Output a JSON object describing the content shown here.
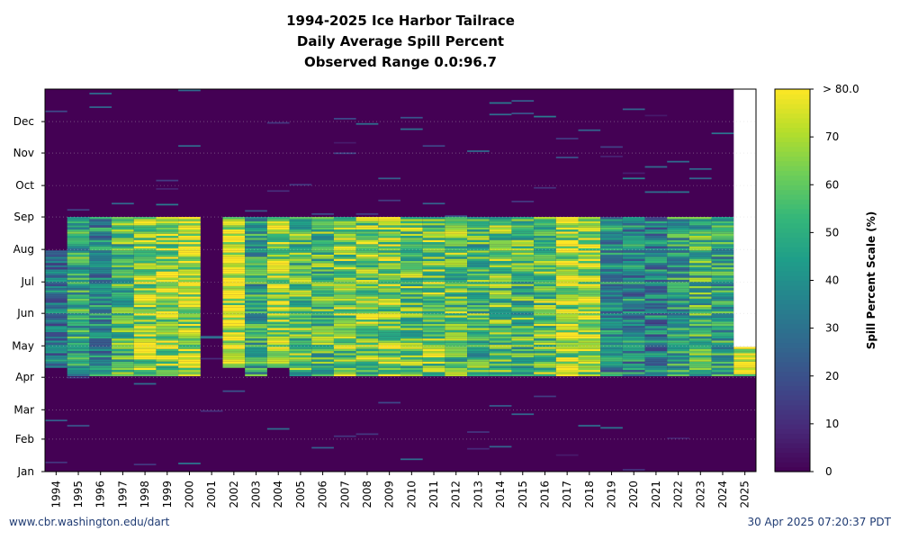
{
  "title_lines": [
    "1994-2025 Ice Harbor Tailrace",
    "Daily Average Spill Percent",
    "Observed Range 0.0:96.7"
  ],
  "footer": {
    "left": "www.cbr.washington.edu/dart",
    "right": "30 Apr 2025 07:20:37 PDT"
  },
  "chart_data": {
    "type": "heatmap",
    "title": "1994-2025 Ice Harbor Tailrace Daily Average Spill Percent Observed Range 0.0:96.7",
    "x_categories": [
      "1994",
      "1995",
      "1996",
      "1997",
      "1998",
      "1999",
      "2000",
      "2001",
      "2002",
      "2003",
      "2004",
      "2005",
      "2006",
      "2007",
      "2008",
      "2009",
      "2010",
      "2011",
      "2012",
      "2013",
      "2014",
      "2015",
      "2016",
      "2017",
      "2018",
      "2019",
      "2020",
      "2021",
      "2022",
      "2023",
      "2024",
      "2025"
    ],
    "y_ticks": [
      "Jan",
      "Feb",
      "Mar",
      "Apr",
      "May",
      "Jun",
      "Jul",
      "Aug",
      "Sep",
      "Oct",
      "Nov",
      "Dec"
    ],
    "y_tick_days": [
      1,
      32,
      60,
      91,
      121,
      152,
      182,
      213,
      244,
      274,
      305,
      335
    ],
    "y_range_days": [
      1,
      366
    ],
    "color_scale": {
      "label": "Spill Percent Scale (%)",
      "min": 0,
      "max": 80,
      "ticks": [
        0,
        10,
        20,
        30,
        40,
        50,
        60,
        70
      ],
      "top_label": "> 80.0",
      "colors": [
        "#440154",
        "#482878",
        "#3e4989",
        "#31688e",
        "#26828e",
        "#1f9e89",
        "#35b779",
        "#6ece58",
        "#b5de2b",
        "#fde725"
      ]
    },
    "observed_range": [
      0.0,
      96.7
    ],
    "grid": true,
    "last_observed_day_2025": 120,
    "spill_seasons": [
      {
        "year": "1994",
        "start": 100,
        "end": 211,
        "mean": 30
      },
      {
        "year": "1995",
        "start": 92,
        "end": 244,
        "mean": 48
      },
      {
        "year": "1996",
        "start": 92,
        "end": 244,
        "mean": 38
      },
      {
        "year": "1997",
        "start": 92,
        "end": 244,
        "mean": 55
      },
      {
        "year": "1998",
        "start": 92,
        "end": 244,
        "mean": 68
      },
      {
        "year": "1999",
        "start": 92,
        "end": 244,
        "mean": 66
      },
      {
        "year": "2000",
        "start": 92,
        "end": 244,
        "mean": 72
      },
      {
        "year": "2001",
        "start": 0,
        "end": 0,
        "mean": 0
      },
      {
        "year": "2002",
        "start": 100,
        "end": 244,
        "mean": 74
      },
      {
        "year": "2003",
        "start": 92,
        "end": 244,
        "mean": 48
      },
      {
        "year": "2004",
        "start": 100,
        "end": 244,
        "mean": 70
      },
      {
        "year": "2005",
        "start": 92,
        "end": 244,
        "mean": 58
      },
      {
        "year": "2006",
        "start": 92,
        "end": 244,
        "mean": 55
      },
      {
        "year": "2007",
        "start": 92,
        "end": 244,
        "mean": 62
      },
      {
        "year": "2008",
        "start": 92,
        "end": 244,
        "mean": 62
      },
      {
        "year": "2009",
        "start": 92,
        "end": 244,
        "mean": 65
      },
      {
        "year": "2010",
        "start": 92,
        "end": 244,
        "mean": 60
      },
      {
        "year": "2011",
        "start": 92,
        "end": 244,
        "mean": 60
      },
      {
        "year": "2012",
        "start": 92,
        "end": 244,
        "mean": 58
      },
      {
        "year": "2013",
        "start": 92,
        "end": 244,
        "mean": 55
      },
      {
        "year": "2014",
        "start": 92,
        "end": 244,
        "mean": 58
      },
      {
        "year": "2015",
        "start": 92,
        "end": 244,
        "mean": 55
      },
      {
        "year": "2016",
        "start": 92,
        "end": 244,
        "mean": 60
      },
      {
        "year": "2017",
        "start": 92,
        "end": 244,
        "mean": 68
      },
      {
        "year": "2018",
        "start": 92,
        "end": 244,
        "mean": 70
      },
      {
        "year": "2019",
        "start": 92,
        "end": 244,
        "mean": 40
      },
      {
        "year": "2020",
        "start": 92,
        "end": 244,
        "mean": 38
      },
      {
        "year": "2021",
        "start": 92,
        "end": 244,
        "mean": 35
      },
      {
        "year": "2022",
        "start": 92,
        "end": 244,
        "mean": 45
      },
      {
        "year": "2023",
        "start": 92,
        "end": 244,
        "mean": 52
      },
      {
        "year": "2024",
        "start": 92,
        "end": 244,
        "mean": 45
      },
      {
        "year": "2025",
        "start": 92,
        "end": 120,
        "mean": 75
      }
    ]
  }
}
